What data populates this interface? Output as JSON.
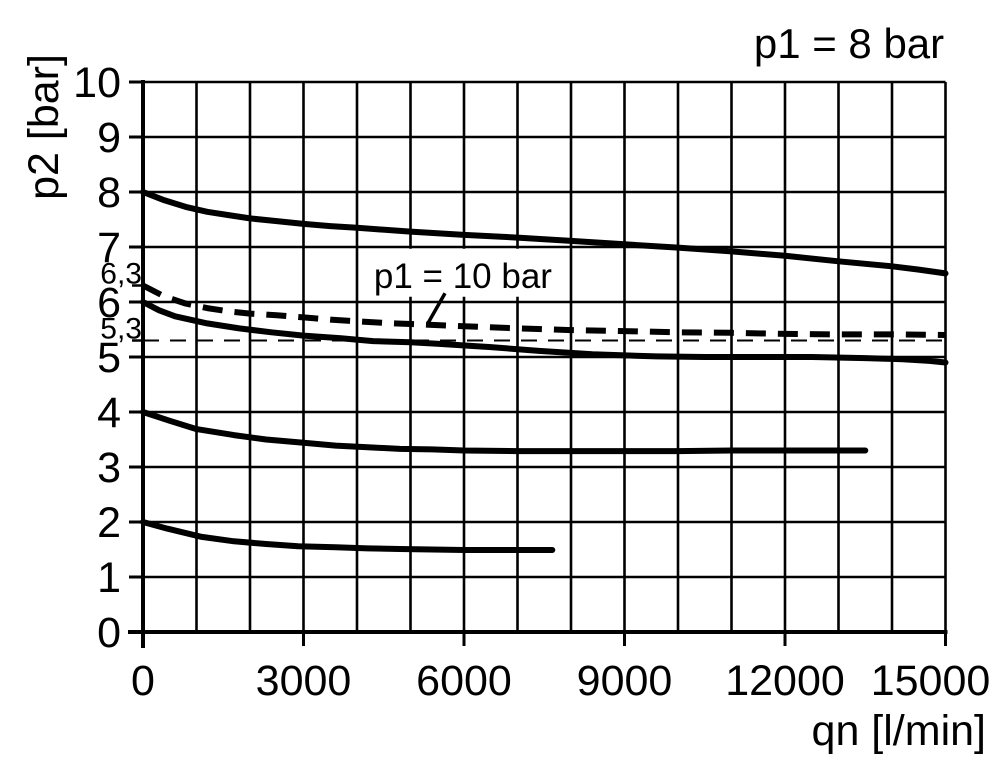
{
  "title": "p1 = 8 bar",
  "colors": {
    "ink": "#000000",
    "background": "#ffffff"
  },
  "chart_data": {
    "type": "line",
    "title": "p1 = 8 bar",
    "xlabel": "qn [l/min]",
    "ylabel": "p2 [bar]",
    "xlim": [
      0,
      15000
    ],
    "ylim": [
      0,
      10
    ],
    "grid": {
      "on": true,
      "x_step": 1000,
      "y_step": 1
    },
    "x_ticks": [
      {
        "value": 0,
        "label": "0"
      },
      {
        "value": 3000,
        "label": "3000"
      },
      {
        "value": 6000,
        "label": "6000"
      },
      {
        "value": 9000,
        "label": "9000"
      },
      {
        "value": 12000,
        "label": "12000"
      },
      {
        "value": 15000,
        "label": "15000"
      }
    ],
    "y_ticks": [
      {
        "value": 0,
        "label": "0"
      },
      {
        "value": 1,
        "label": "1"
      },
      {
        "value": 2,
        "label": "2"
      },
      {
        "value": 3,
        "label": "3"
      },
      {
        "value": 4,
        "label": "4"
      },
      {
        "value": 5,
        "label": "5"
      },
      {
        "value": 6,
        "label": "6"
      },
      {
        "value": 7,
        "label": "7"
      },
      {
        "value": 8,
        "label": "8"
      },
      {
        "value": 9,
        "label": "9"
      },
      {
        "value": 10,
        "label": "10"
      }
    ],
    "y_special_ticks": [
      {
        "value": 6.3,
        "label": "6,3"
      },
      {
        "value": 5.3,
        "label": "5,3"
      }
    ],
    "series": [
      {
        "name": "curve-setpoint-8bar",
        "style": "solid",
        "points": [
          [
            0,
            8.0
          ],
          [
            400,
            7.85
          ],
          [
            800,
            7.73
          ],
          [
            1200,
            7.64
          ],
          [
            1600,
            7.58
          ],
          [
            2000,
            7.52
          ],
          [
            2500,
            7.47
          ],
          [
            3000,
            7.42
          ],
          [
            3500,
            7.38
          ],
          [
            4000,
            7.35
          ],
          [
            5000,
            7.28
          ],
          [
            6000,
            7.22
          ],
          [
            7000,
            7.17
          ],
          [
            8000,
            7.11
          ],
          [
            9000,
            7.05
          ],
          [
            10000,
            6.99
          ],
          [
            11000,
            6.92
          ],
          [
            12000,
            6.84
          ],
          [
            13000,
            6.74
          ],
          [
            14000,
            6.65
          ],
          [
            14500,
            6.59
          ],
          [
            15000,
            6.52
          ]
        ]
      },
      {
        "name": "curve-p1-10bar-dashed",
        "style": "dashed",
        "points": [
          [
            0,
            6.3
          ],
          [
            400,
            6.1
          ],
          [
            800,
            5.97
          ],
          [
            1200,
            5.89
          ],
          [
            1600,
            5.83
          ],
          [
            2000,
            5.79
          ],
          [
            2500,
            5.76
          ],
          [
            3000,
            5.72
          ],
          [
            3500,
            5.68
          ],
          [
            4000,
            5.65
          ],
          [
            4500,
            5.62
          ],
          [
            5000,
            5.6
          ],
          [
            6000,
            5.56
          ],
          [
            7000,
            5.52
          ],
          [
            8000,
            5.49
          ],
          [
            9000,
            5.47
          ],
          [
            10000,
            5.45
          ],
          [
            11000,
            5.44
          ],
          [
            12000,
            5.42
          ],
          [
            13000,
            5.41
          ],
          [
            14000,
            5.41
          ],
          [
            15000,
            5.4
          ]
        ]
      },
      {
        "name": "curve-setpoint-6bar",
        "style": "solid",
        "points": [
          [
            0,
            6.0
          ],
          [
            300,
            5.85
          ],
          [
            600,
            5.74
          ],
          [
            1200,
            5.61
          ],
          [
            1800,
            5.52
          ],
          [
            2400,
            5.45
          ],
          [
            3000,
            5.39
          ],
          [
            3700,
            5.34
          ],
          [
            4300,
            5.29
          ],
          [
            5000,
            5.27
          ],
          [
            5500,
            5.24
          ],
          [
            6500,
            5.18
          ],
          [
            7400,
            5.11
          ],
          [
            8400,
            5.05
          ],
          [
            9600,
            5.01
          ],
          [
            10500,
            5.0
          ],
          [
            11500,
            5.0
          ],
          [
            12500,
            5.0
          ],
          [
            13500,
            4.98
          ],
          [
            14200,
            4.96
          ],
          [
            14700,
            4.93
          ],
          [
            15000,
            4.9
          ]
        ]
      },
      {
        "name": "curve-setpoint-4bar",
        "style": "solid",
        "points": [
          [
            0,
            4.0
          ],
          [
            500,
            3.84
          ],
          [
            1000,
            3.69
          ],
          [
            1700,
            3.58
          ],
          [
            2300,
            3.5
          ],
          [
            3000,
            3.44
          ],
          [
            3600,
            3.39
          ],
          [
            4200,
            3.36
          ],
          [
            4800,
            3.33
          ],
          [
            5400,
            3.32
          ],
          [
            6000,
            3.3
          ],
          [
            7000,
            3.29
          ],
          [
            8000,
            3.29
          ],
          [
            9000,
            3.29
          ],
          [
            10000,
            3.29
          ],
          [
            11000,
            3.3
          ],
          [
            12000,
            3.3
          ],
          [
            13000,
            3.3
          ],
          [
            13500,
            3.3
          ]
        ]
      },
      {
        "name": "curve-setpoint-2bar",
        "style": "solid",
        "points": [
          [
            0,
            2.0
          ],
          [
            450,
            1.88
          ],
          [
            1100,
            1.73
          ],
          [
            1700,
            1.65
          ],
          [
            2300,
            1.6
          ],
          [
            2900,
            1.56
          ],
          [
            3600,
            1.54
          ],
          [
            4200,
            1.52
          ],
          [
            4800,
            1.51
          ],
          [
            5400,
            1.5
          ],
          [
            6000,
            1.49
          ],
          [
            6800,
            1.49
          ],
          [
            7650,
            1.49
          ]
        ]
      }
    ],
    "reference_line": {
      "p2": 5.3,
      "style": "thin-dashed",
      "x_range": [
        0,
        15000
      ]
    },
    "annotation": {
      "text": "p1 = 10 bar",
      "label_center": [
        5980,
        6.55
      ],
      "leader_from": [
        5645,
        6.16
      ],
      "leader_to": [
        5330,
        5.62
      ]
    }
  }
}
